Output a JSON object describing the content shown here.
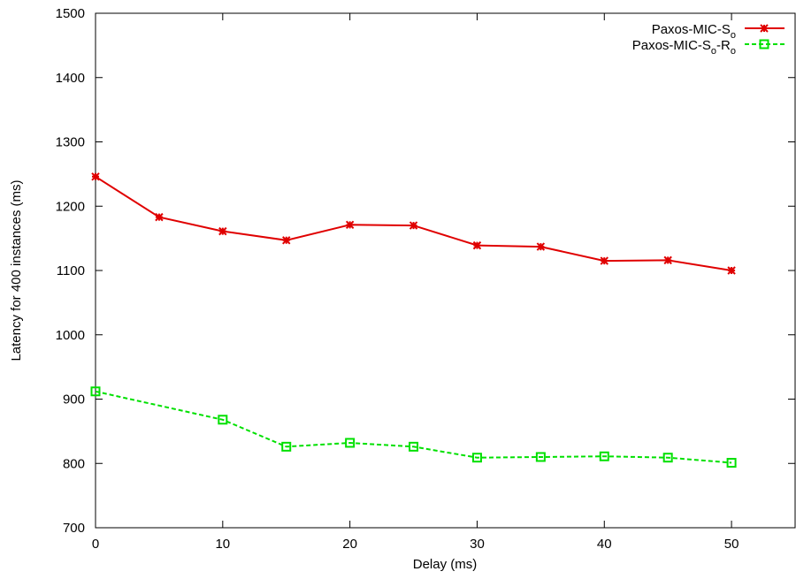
{
  "chart_data": {
    "type": "line",
    "xlabel": "Delay (ms)",
    "ylabel": "Latency for 400 instances (ms)",
    "xlim": [
      0,
      55
    ],
    "ylim": [
      700,
      1500
    ],
    "xticks": [
      0,
      10,
      20,
      30,
      40,
      50
    ],
    "yticks": [
      700,
      800,
      900,
      1000,
      1100,
      1200,
      1300,
      1400,
      1500
    ],
    "grid": false,
    "legend_position": "top-right",
    "series": [
      {
        "name": "Paxos-MIC-So",
        "legend_label": {
          "base": "Paxos-MIC-S",
          "sub1": "o"
        },
        "color": "#e00000",
        "line_style": "solid",
        "marker": "asterisk",
        "x": [
          0,
          5,
          10,
          15,
          20,
          25,
          30,
          35,
          40,
          45,
          50
        ],
        "values": [
          1246,
          1183,
          1161,
          1147,
          1171,
          1170,
          1139,
          1137,
          1115,
          1116,
          1100
        ]
      },
      {
        "name": "Paxos-MIC-So-Ro",
        "legend_label": {
          "base": "Paxos-MIC-S",
          "sub1": "o",
          "mid": "-R",
          "sub2": "o"
        },
        "color": "#00e000",
        "line_style": "dashed",
        "marker": "square",
        "x": [
          0,
          10,
          15,
          20,
          25,
          30,
          35,
          40,
          45,
          50
        ],
        "values": [
          912,
          868,
          826,
          832,
          826,
          809,
          810,
          811,
          809,
          801
        ]
      }
    ]
  }
}
